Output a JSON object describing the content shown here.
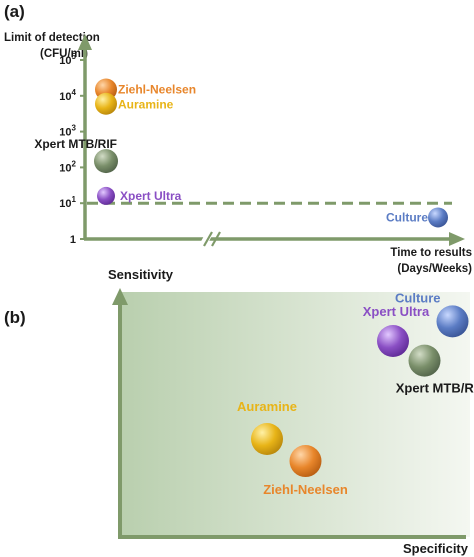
{
  "chart_data": [
    {
      "panel_label": "(a)",
      "type": "scatter",
      "ylabel_line1": "Limit of detection",
      "ylabel_line2": "(CFU/ml)",
      "xlabel_line1": "Time to results",
      "xlabel_line2": "(Days/Weeks)",
      "y_scale": "log",
      "ylim": [
        1,
        100000
      ],
      "y_ticks": [
        {
          "base": "1",
          "exp": "",
          "value": 1
        },
        {
          "base": "10",
          "exp": "1",
          "value": 10
        },
        {
          "base": "10",
          "exp": "2",
          "value": 100
        },
        {
          "base": "10",
          "exp": "3",
          "value": 1000
        },
        {
          "base": "10",
          "exp": "4",
          "value": 10000
        },
        {
          "base": "10",
          "exp": "5",
          "value": 100000
        }
      ],
      "x_axis_break": true,
      "threshold_line": {
        "y": 10,
        "style": "dashed",
        "color": "#7f9a6a"
      },
      "points": [
        {
          "label": "Ziehl-Neelsen",
          "y": 15000,
          "group": "rapid",
          "color": "#e8862b",
          "label_color": "#e8862b"
        },
        {
          "label": "Auramine",
          "y": 6000,
          "group": "rapid",
          "color": "#e8b417",
          "label_color": "#e8b417"
        },
        {
          "label": "Xpert MTB/RIF",
          "y": 150,
          "group": "rapid",
          "color": "#7a8f6a",
          "label_color": "#1a1a1a"
        },
        {
          "label": "Xpert Ultra",
          "y": 16,
          "group": "rapid",
          "color": "#8a4fc4",
          "label_color": "#8a4fc4"
        },
        {
          "label": "Culture",
          "y": 4,
          "group": "slow",
          "color": "#5b7cc4",
          "label_color": "#5b7cc4"
        }
      ]
    },
    {
      "panel_label": "(b)",
      "type": "scatter",
      "ylabel": "Sensitivity",
      "xlabel": "Specificity",
      "background_gradient": [
        "#b9cfae",
        "#f4f7f1"
      ],
      "points": [
        {
          "label": "Culture",
          "x": 0.95,
          "y": 0.88,
          "color": "#5b7cc4",
          "label_color": "#5b7cc4"
        },
        {
          "label": "Xpert Ultra",
          "x": 0.78,
          "y": 0.8,
          "color": "#8a4fc4",
          "label_color": "#8a4fc4"
        },
        {
          "label": "Xpert MTB/RIF",
          "x": 0.87,
          "y": 0.72,
          "color": "#7a8f6a",
          "label_color": "#1a1a1a"
        },
        {
          "label": "Auramine",
          "x": 0.42,
          "y": 0.4,
          "color": "#e8b417",
          "label_color": "#e8b417"
        },
        {
          "label": "Ziehl-Neelsen",
          "x": 0.53,
          "y": 0.31,
          "color": "#e8862b",
          "label_color": "#e8862b"
        }
      ]
    }
  ]
}
